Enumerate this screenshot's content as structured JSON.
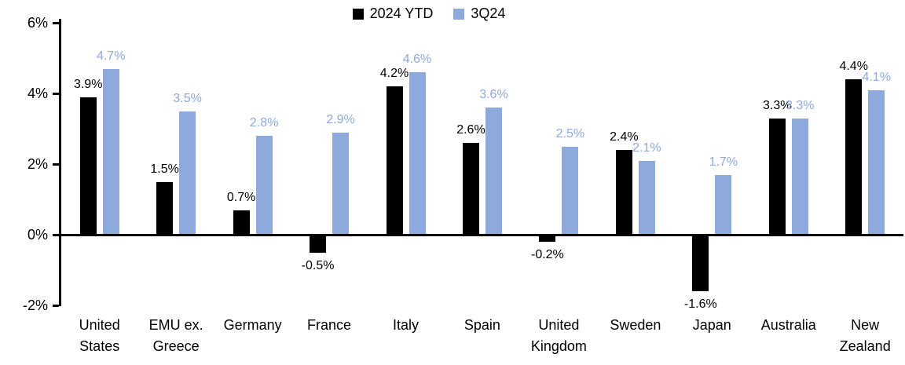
{
  "chart_data": {
    "type": "bar",
    "title": "",
    "categories": [
      "United States",
      "EMU ex. Greece",
      "Germany",
      "France",
      "Italy",
      "Spain",
      "United Kingdom",
      "Sweden",
      "Japan",
      "Australia",
      "New Zealand"
    ],
    "category_labels": [
      "United\nStates",
      "EMU ex.\nGreece",
      "Germany",
      "France",
      "Italy",
      "Spain",
      "United\nKingdom",
      "Sweden",
      "Japan",
      "Australia",
      "New\nZealand"
    ],
    "series": [
      {
        "name": "2024 YTD",
        "color": "#000000",
        "values": [
          3.9,
          1.5,
          0.7,
          -0.5,
          4.2,
          2.6,
          -0.2,
          2.4,
          -1.6,
          3.3,
          4.4
        ]
      },
      {
        "name": "3Q24",
        "color": "#8EA9DB",
        "values": [
          4.7,
          3.5,
          2.8,
          2.9,
          4.6,
          3.6,
          2.5,
          2.1,
          1.7,
          3.3,
          4.1
        ]
      }
    ],
    "data_labels": [
      [
        "3.9%",
        "1.5%",
        "0.7%",
        "-0.5%",
        "4.2%",
        "2.6%",
        "-0.2%",
        "2.4%",
        "-1.6%",
        "3.3%",
        "4.4%"
      ],
      [
        "4.7%",
        "3.5%",
        "2.8%",
        "2.9%",
        "4.6%",
        "3.6%",
        "2.5%",
        "2.1%",
        "1.7%",
        "3.3%",
        "4.1%"
      ]
    ],
    "y_axis": {
      "min": -2,
      "max": 6,
      "ticks": [
        {
          "value": 6,
          "label": "6%"
        },
        {
          "value": 4,
          "label": "4%"
        },
        {
          "value": 2,
          "label": "2%"
        },
        {
          "value": 0,
          "label": "0%"
        },
        {
          "value": -2,
          "label": "-2%"
        }
      ]
    },
    "legend": {
      "position": "top-center",
      "items": [
        "2024 YTD",
        "3Q24"
      ]
    },
    "grid": false
  }
}
